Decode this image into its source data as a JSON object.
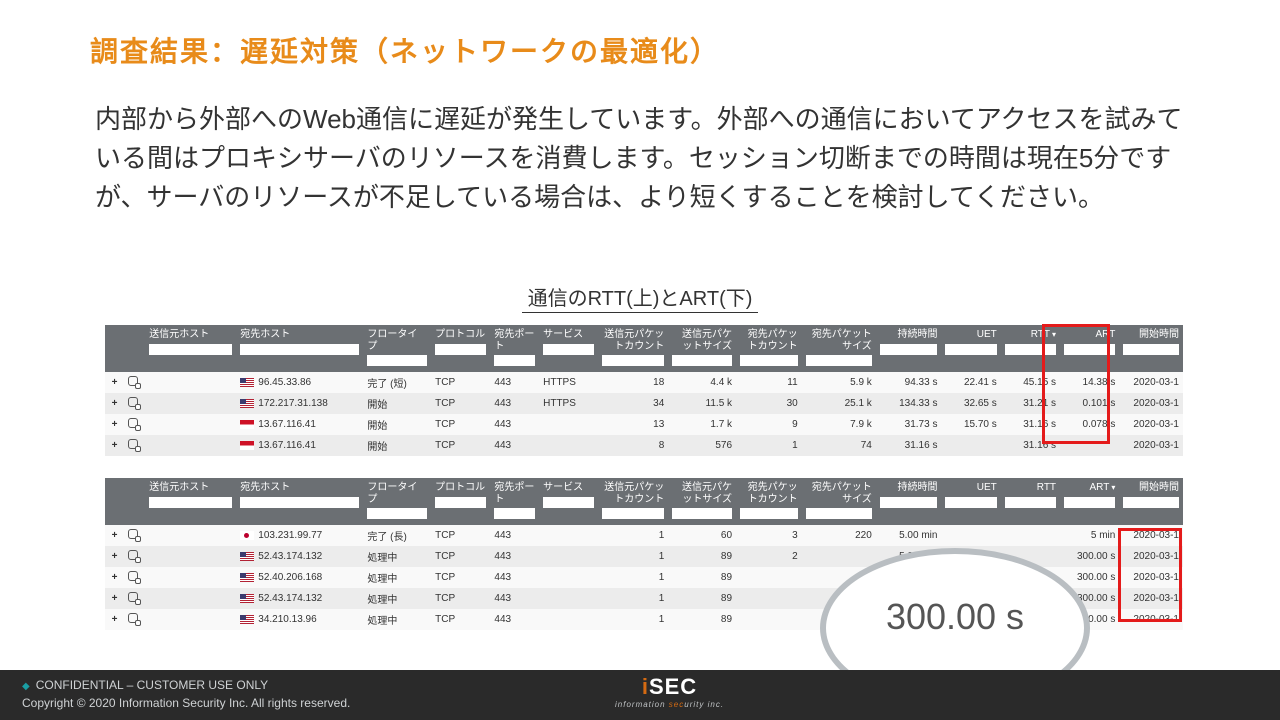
{
  "title": "調査結果：遅延対策（ネットワークの最適化）",
  "body": "内部から外部へのWeb通信に遅延が発生しています。外部への通信においてアクセスを試みている間はプロキシサーバのリソースを消費します。セッション切断までの時間は現在5分ですが、サーバのリソースが不足している場合は、より短くすることを検討してください。",
  "sub_caption": "通信のRTT(上)とART(下)",
  "columns": {
    "expand": "",
    "act": "",
    "src": "送信元ホスト",
    "dst": "宛先ホスト",
    "flow": "フロータイプ",
    "proto": "プロトコル",
    "port": "宛先ポート",
    "svc": "サービス",
    "spkt": "送信元パケットカウント",
    "ssize": "送信元パケットサイズ",
    "dpkt": "宛先パケットカウント",
    "dsize": "宛先パケットサイズ",
    "dur": "持続時間",
    "uet": "UET",
    "rtt": "RTT",
    "art": "ART",
    "start": "開始時間"
  },
  "sort_col_1": "rtt",
  "sort_col_2": "art",
  "table1_rows": [
    {
      "flag": "us",
      "dst": "96.45.33.86",
      "flow": "完了 (短)",
      "proto": "TCP",
      "port": "443",
      "svc": "HTTPS",
      "spkt": "18",
      "ssize": "4.4 k",
      "dpkt": "11",
      "dsize": "5.9 k",
      "dur": "94.33 s",
      "uet": "22.41 s",
      "rtt": "45.15 s",
      "art": "14.38 s",
      "start": "2020-03-1"
    },
    {
      "flag": "us",
      "dst": "172.217.31.138",
      "flow": "開始",
      "proto": "TCP",
      "port": "443",
      "svc": "HTTPS",
      "spkt": "34",
      "ssize": "11.5 k",
      "dpkt": "30",
      "dsize": "25.1 k",
      "dur": "134.33 s",
      "uet": "32.65 s",
      "rtt": "31.21 s",
      "art": "0.101 s",
      "start": "2020-03-1"
    },
    {
      "flag": "id",
      "dst": "13.67.116.41",
      "flow": "開始",
      "proto": "TCP",
      "port": "443",
      "svc": "",
      "spkt": "13",
      "ssize": "1.7 k",
      "dpkt": "9",
      "dsize": "7.9 k",
      "dur": "31.73 s",
      "uet": "15.70 s",
      "rtt": "31.16 s",
      "art": "0.078 s",
      "start": "2020-03-1"
    },
    {
      "flag": "id",
      "dst": "13.67.116.41",
      "flow": "開始",
      "proto": "TCP",
      "port": "443",
      "svc": "",
      "spkt": "8",
      "ssize": "576",
      "dpkt": "1",
      "dsize": "74",
      "dur": "31.16 s",
      "uet": "",
      "rtt": "31.16 s",
      "art": "",
      "start": "2020-03-1"
    }
  ],
  "table2_rows": [
    {
      "flag": "jp",
      "dst": "103.231.99.77",
      "flow": "完了 (長)",
      "proto": "TCP",
      "port": "443",
      "svc": "",
      "spkt": "1",
      "ssize": "60",
      "dpkt": "3",
      "dsize": "220",
      "dur": "5.00 min",
      "uet": "",
      "rtt": "",
      "art": "5 min",
      "start": "2020-03-1"
    },
    {
      "flag": "us",
      "dst": "52.43.174.132",
      "flow": "処理中",
      "proto": "TCP",
      "port": "443",
      "svc": "",
      "spkt": "1",
      "ssize": "89",
      "dpkt": "2",
      "dsize": "",
      "dur": "5.00 min",
      "uet": "",
      "rtt": "",
      "art": "300.00 s",
      "start": "2020-03-1"
    },
    {
      "flag": "us",
      "dst": "52.40.206.168",
      "flow": "処理中",
      "proto": "TCP",
      "port": "443",
      "svc": "",
      "spkt": "1",
      "ssize": "89",
      "dpkt": "",
      "dsize": "",
      "dur": "",
      "uet": "",
      "rtt": "",
      "art": "300.00 s",
      "start": "2020-03-1"
    },
    {
      "flag": "us",
      "dst": "52.43.174.132",
      "flow": "処理中",
      "proto": "TCP",
      "port": "443",
      "svc": "",
      "spkt": "1",
      "ssize": "89",
      "dpkt": "",
      "dsize": "",
      "dur": "",
      "uet": "",
      "rtt": "",
      "art": "300.00 s",
      "start": "2020-03-1"
    },
    {
      "flag": "us",
      "dst": "34.210.13.96",
      "flow": "処理中",
      "proto": "TCP",
      "port": "443",
      "svc": "",
      "spkt": "1",
      "ssize": "89",
      "dpkt": "",
      "dsize": "",
      "dur": "",
      "uet": "",
      "rtt": "",
      "art": "300.00 s",
      "start": "2020-03-1"
    }
  ],
  "zoom_value": "300.00 s",
  "footer": {
    "conf": "CONFIDENTIAL – CUSTOMER USE ONLY",
    "copy": "Copyright © 2020 Information Security Inc. All rights reserved.",
    "brand_i": "i",
    "brand_rest": "SEC",
    "sub_a": "information ",
    "sub_b": "sec",
    "sub_c": "urity inc."
  },
  "col_widths": {
    "expand": 18,
    "act": 20,
    "src": 86,
    "dst": 120,
    "flow": 64,
    "proto": 56,
    "port": 46,
    "svc": 56,
    "spkt": 66,
    "ssize": 64,
    "dpkt": 62,
    "dsize": 70,
    "dur": 62,
    "uet": 56,
    "rtt": 56,
    "art": 56,
    "start": 60
  },
  "colors": {
    "accent": "#e88b1a",
    "header": "#6b6f73",
    "highlight": "#e41b1b",
    "footer": "#2a2a2a"
  }
}
